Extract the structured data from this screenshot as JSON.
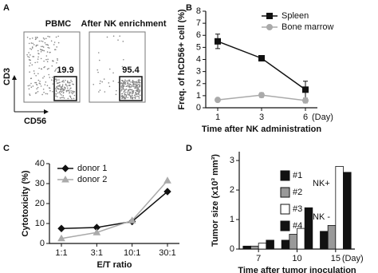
{
  "chart_data": [
    {
      "type": "flow",
      "panel": "A",
      "titles": [
        "PBMC",
        "After NK enrichment"
      ],
      "gate_values": [
        19.9,
        95.4
      ],
      "xlabel": "CD56",
      "ylabel": "CD3"
    },
    {
      "type": "line",
      "panel": "B",
      "categories": [
        "1",
        "3",
        "6"
      ],
      "x_unit": "(Day)",
      "xlabel": "Time after NK administration",
      "ylabel": "Freq. of hCD56+ cell (%)",
      "ylim": [
        0,
        8
      ],
      "yticks": [
        0,
        1,
        2,
        3,
        4,
        5,
        6,
        7,
        8
      ],
      "legend": "upper right",
      "series": [
        {
          "name": "Spleen",
          "color": "#111111",
          "marker": "square",
          "values": [
            5.5,
            4.1,
            1.5
          ],
          "errors": [
            0.6,
            0.1,
            0.7
          ]
        },
        {
          "name": "Bone marrow",
          "color": "#aaaaaa",
          "marker": "circle",
          "values": [
            0.65,
            1.05,
            0.6
          ],
          "errors": [
            0.1,
            0.2,
            0.2
          ]
        }
      ]
    },
    {
      "type": "line",
      "panel": "C",
      "categories": [
        "1:1",
        "3:1",
        "10:1",
        "30:1"
      ],
      "xlabel": "E/T ratio",
      "ylabel": "Cytotoxicity (%)",
      "ylim": [
        0,
        40
      ],
      "yticks": [
        0,
        10,
        20,
        30,
        40
      ],
      "legend": "upper left",
      "series": [
        {
          "name": "donor 1",
          "color": "#111111",
          "marker": "diamond",
          "values": [
            7.5,
            8,
            11,
            26
          ]
        },
        {
          "name": "donor 2",
          "color": "#aaaaaa",
          "marker": "triangle",
          "values": [
            2.5,
            5.5,
            11.5,
            31.5
          ]
        }
      ]
    },
    {
      "type": "bar",
      "panel": "D",
      "categories": [
        "7",
        "10",
        "15"
      ],
      "x_unit": "(Day)",
      "xlabel": "Time after tumor inoculation",
      "ylabel": "Tumor size (x10³ mm³)",
      "ylim": [
        0,
        3.3
      ],
      "yticks": [
        0,
        1,
        2,
        3
      ],
      "legend_groups": [
        "NK+",
        "NK -"
      ],
      "series": [
        {
          "name": "#1",
          "color": "#111111",
          "values": [
            0.1,
            0.3,
            0.6
          ]
        },
        {
          "name": "#2",
          "color": "#999999",
          "values": [
            0.1,
            0.5,
            0.8
          ]
        },
        {
          "name": "#3",
          "color": "#ffffff",
          "values": [
            0.2,
            0.7,
            2.8
          ]
        },
        {
          "name": "#4",
          "color": "#111111",
          "values": [
            0.3,
            1.4,
            2.6
          ]
        }
      ]
    }
  ]
}
